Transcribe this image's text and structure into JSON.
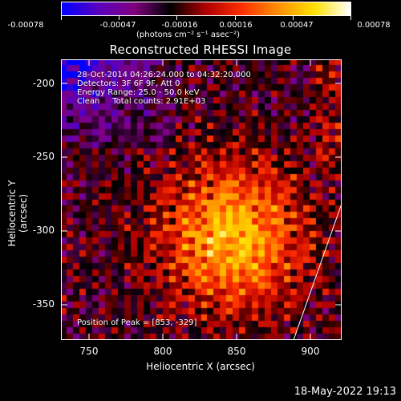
{
  "colorbar": {
    "tick_labels": [
      "-0.00078",
      "-0.00047",
      "-0.00016",
      "0.00016",
      "0.00047",
      "0.00078"
    ],
    "units": "(photons cm⁻² s⁻¹ asec⁻²)",
    "colors": [
      "#0000ff",
      "#5a00c0",
      "#800080",
      "#000000",
      "#b00000",
      "#ff3000",
      "#ff9000",
      "#ffe000",
      "#ffffff"
    ]
  },
  "title": "Reconstructed RHESSI Image",
  "annotations": {
    "time_range": "28-Oct-2014 04:26:24.000 to 04:32:20.000",
    "detectors": "Detectors: 3F 6F 9F, Att 0",
    "energy_range": "Energy Range: 25.0 - 50.0 keV",
    "clean_counts": "Clean     Total counts: 2.91E+03",
    "peak_position": "Position of Peak = [853, -329]"
  },
  "axes": {
    "xlabel": "Heliocentric X (arcsec)",
    "ylabel": "Heliocentric Y (arcsec)",
    "x_ticks": [
      "750",
      "800",
      "850",
      "900"
    ],
    "y_ticks": [
      "-200",
      "-250",
      "-300",
      "-350"
    ]
  },
  "footer": {
    "timestamp": "18-May-2022 19:13"
  }
}
